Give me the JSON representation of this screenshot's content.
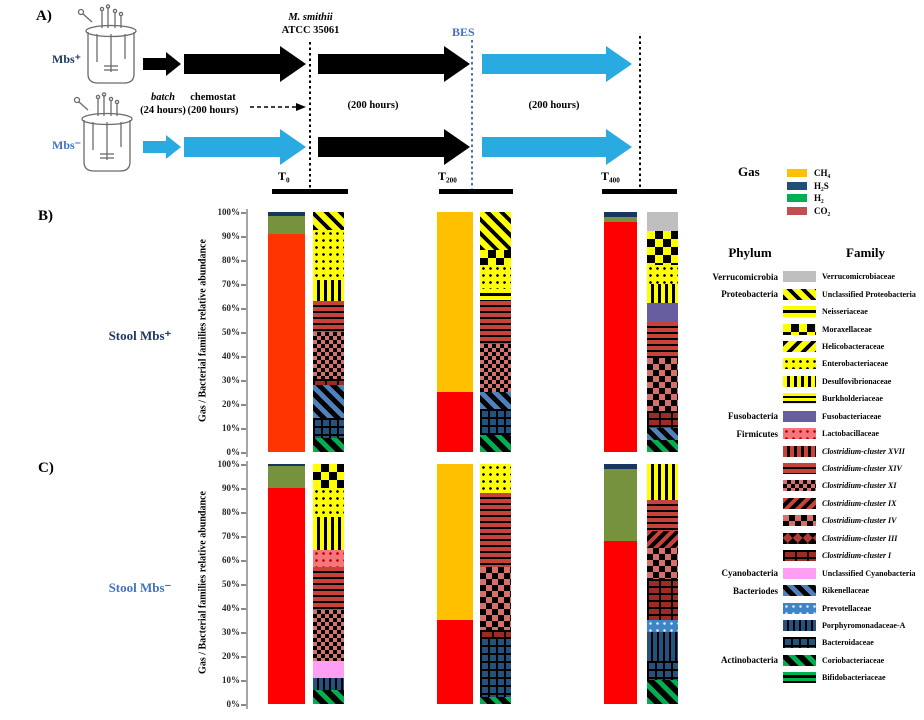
{
  "figure": {
    "panel_a_label": "A)",
    "panel_b_label": "B)",
    "panel_c_label": "C)",
    "reactors": {
      "top_label": "Mbs⁺",
      "bottom_label": "Mbs⁻"
    },
    "timeline": {
      "batch_line1": "batch",
      "batch_line2": "(24 hours)",
      "chemostat_line1": "chemostat",
      "chemostat_line2": "(200 hours)",
      "inoculum_line1": "M. smithii",
      "inoculum_line2": "ATCC 35061",
      "bes_label": "BES",
      "phase2_duration": "(200 hours)",
      "phase3_duration": "(200 hours)",
      "timepoints": [
        "T₀",
        "T₂₀₀",
        "T₄₀₀"
      ]
    }
  },
  "colors": {
    "blue_arrow": "#29ABE2",
    "blue_text": "#4472C4",
    "dark_navy_text": "#1F3864",
    "axis_gray": "#A6A6A6"
  },
  "gas_legend": {
    "title": "Gas",
    "items": [
      {
        "label": "CH₄",
        "color": "#FFC000"
      },
      {
        "label": "H₂S",
        "color": "#1F4E79"
      },
      {
        "label": "H₂",
        "color": "#00B050"
      },
      {
        "label": "CO₂",
        "color": "#C0504D"
      }
    ]
  },
  "family_legend": {
    "phylum_header": "Phylum",
    "family_header": "Family",
    "items": [
      {
        "phylum": "Verrucomicrobia",
        "family": "Verrucomicrobiaceae",
        "pattern": "verrucomicrobiaceae",
        "italic": false
      },
      {
        "phylum": "Proteobacteria",
        "family": "Unclassified Proteobacteria",
        "pattern": "unclassified_proteobacteria",
        "italic": false
      },
      {
        "phylum": "",
        "family": "Neisseriaceae",
        "pattern": "neisseriaceae",
        "italic": false
      },
      {
        "phylum": "",
        "family": "Moraxellaceae",
        "pattern": "moraxellaceae",
        "italic": false
      },
      {
        "phylum": "",
        "family": "Helicobacteraceae",
        "pattern": "helicobacteraceae",
        "italic": false
      },
      {
        "phylum": "",
        "family": "Enterobacteriaceae",
        "pattern": "enterobacteriaceae",
        "italic": false
      },
      {
        "phylum": "",
        "family": "Desulfovibrionaceae",
        "pattern": "desulfovibrionaceae",
        "italic": false
      },
      {
        "phylum": "",
        "family": "Burkholderiaceae",
        "pattern": "burkholderiaceae",
        "italic": false
      },
      {
        "phylum": "Fusobacteria",
        "family": "Fusobacteriaceae",
        "pattern": "fusobacteriaceae",
        "italic": false
      },
      {
        "phylum": "Firmicutes",
        "family": "Lactobacillaceae",
        "pattern": "lactobacillaceae",
        "italic": false
      },
      {
        "phylum": "",
        "family": "Clostridium-cluster XVII",
        "pattern": "clostridium_xvii",
        "italic": true
      },
      {
        "phylum": "",
        "family": "Clostridium-cluster XIV",
        "pattern": "clostridium_xiv",
        "italic": true
      },
      {
        "phylum": "",
        "family": "Clostridium-cluster XI",
        "pattern": "clostridium_xi",
        "italic": true
      },
      {
        "phylum": "",
        "family": "Clostridium-cluster IX",
        "pattern": "clostridium_ix",
        "italic": true
      },
      {
        "phylum": "",
        "family": "Clostridium-cluster IV",
        "pattern": "clostridium_iv",
        "italic": true
      },
      {
        "phylum": "",
        "family": "Clostridium-cluster III",
        "pattern": "clostridium_iii",
        "italic": true
      },
      {
        "phylum": "",
        "family": "Clostridium-cluster I",
        "pattern": "clostridium_i",
        "italic": true
      },
      {
        "phylum": "Cyanobacteria",
        "family": "Unclassified Cyanobacteria",
        "pattern": "cyanobacteria_unclassified",
        "italic": false
      },
      {
        "phylum": "Bacteriodes",
        "family": "Rikenellaceae",
        "pattern": "rikenellaceae",
        "italic": false
      },
      {
        "phylum": "",
        "family": "Prevotellaceae",
        "pattern": "prevotellaceae",
        "italic": false
      },
      {
        "phylum": "",
        "family": "Porphyromonadaceae-A",
        "pattern": "porphyromonadaceae",
        "italic": false
      },
      {
        "phylum": "",
        "family": "Bacteroidaceae",
        "pattern": "bacteroidaceae",
        "italic": false
      },
      {
        "phylum": "Actinobacteria",
        "family": "Coriobacteriaceae",
        "pattern": "coriobacteriaceae",
        "italic": false
      },
      {
        "phylum": "",
        "family": "Bifidobacteriaceae",
        "pattern": "bifidobacteriaceae",
        "italic": false
      }
    ]
  },
  "chart_data": [
    {
      "type": "bar",
      "panel": "B)",
      "row_label": "Stool  Mbs⁺",
      "row_label_color": "#1F3864",
      "ylabel": "Gas / Bacterial families relative abundance",
      "ylim": [
        0,
        100
      ],
      "ytick_labels": [
        "0%",
        "10%",
        "20%",
        "30%",
        "40%",
        "50%",
        "60%",
        "70%",
        "80%",
        "90%",
        "100%"
      ],
      "grid": false,
      "groups": [
        {
          "timepoint": "T₀",
          "gas_stack": [
            {
              "gas": "CO₂",
              "percent": 91,
              "color": "#FF3400"
            },
            {
              "gas": "H₂",
              "percent": 7.5,
              "color": "#76923C"
            },
            {
              "gas": "H₂S",
              "percent": 1.5,
              "color": "#17375E"
            }
          ],
          "family_stack": [
            {
              "family": "Coriobacteriaceae",
              "pattern": "coriobacteriaceae",
              "percent": 6
            },
            {
              "family": "Bacteroidaceae",
              "pattern": "bacteroidaceae",
              "percent": 8
            },
            {
              "family": "Rikenellaceae",
              "pattern": "rikenellaceae",
              "percent": 14
            },
            {
              "family": "Clostridium-cluster I",
              "pattern": "clostridium_i",
              "percent": 2.5
            },
            {
              "family": "Clostridium-cluster XI",
              "pattern": "clostridium_xi",
              "percent": 19.5
            },
            {
              "family": "Clostridium-cluster XIV",
              "pattern": "clostridium_xiv",
              "percent": 13
            },
            {
              "family": "Desulfovibrionaceae",
              "pattern": "desulfovibrionaceae",
              "percent": 8.5
            },
            {
              "family": "Enterobacteriaceae",
              "pattern": "enterobacteriaceae",
              "percent": 21
            },
            {
              "family": "Unclassified Proteobacteria",
              "pattern": "unclassified_proteobacteria",
              "percent": 7.5
            }
          ]
        },
        {
          "timepoint": "T₂₀₀",
          "gas_stack": [
            {
              "gas": "CO₂",
              "percent": 25,
              "color": "#FF0000"
            },
            {
              "gas": "CH₄",
              "percent": 75,
              "color": "#FFC000"
            }
          ],
          "family_stack": [
            {
              "family": "Coriobacteriaceae",
              "pattern": "coriobacteriaceae",
              "percent": 7
            },
            {
              "family": "Bacteroidaceae",
              "pattern": "bacteroidaceae",
              "percent": 11
            },
            {
              "family": "Rikenellaceae",
              "pattern": "rikenellaceae",
              "percent": 7
            },
            {
              "family": "Clostridium-cluster XI",
              "pattern": "clostridium_xi",
              "percent": 20
            },
            {
              "family": "Clostridium-cluster XIV",
              "pattern": "clostridium_xiv",
              "percent": 18
            },
            {
              "family": "Neisseriaceae",
              "pattern": "neisseriaceae",
              "percent": 5
            },
            {
              "family": "Enterobacteriaceae",
              "pattern": "enterobacteriaceae",
              "percent": 10
            },
            {
              "family": "Moraxellaceae",
              "pattern": "moraxellaceae",
              "percent": 6
            },
            {
              "family": "Unclassified Proteobacteria",
              "pattern": "unclassified_proteobacteria",
              "percent": 16
            }
          ]
        },
        {
          "timepoint": "T₄₀₀",
          "gas_stack": [
            {
              "gas": "CO₂",
              "percent": 96,
              "color": "#FF0000"
            },
            {
              "gas": "H₂",
              "percent": 2,
              "color": "#76923C"
            },
            {
              "gas": "H₂S",
              "percent": 2,
              "color": "#17375E"
            }
          ],
          "family_stack": [
            {
              "family": "Coriobacteriaceae",
              "pattern": "coriobacteriaceae",
              "percent": 5
            },
            {
              "family": "Rikenellaceae",
              "pattern": "rikenellaceae",
              "percent": 5
            },
            {
              "family": "Clostridium-cluster I",
              "pattern": "clostridium_i",
              "percent": 7
            },
            {
              "family": "Clostridium-cluster IV",
              "pattern": "clostridium_iv",
              "percent": 22
            },
            {
              "family": "Clostridium-cluster XIV",
              "pattern": "clostridium_xiv",
              "percent": 15
            },
            {
              "family": "Fusobacteriaceae",
              "pattern": "fusobacteriaceae",
              "percent": 8
            },
            {
              "family": "Desulfovibrionaceae",
              "pattern": "desulfovibrionaceae",
              "percent": 8
            },
            {
              "family": "Enterobacteriaceae",
              "pattern": "enterobacteriaceae",
              "percent": 8
            },
            {
              "family": "Moraxellaceae",
              "pattern": "moraxellaceae",
              "percent": 14
            },
            {
              "family": "Verrucomicrobiaceae",
              "pattern": "verrucomicrobiaceae",
              "percent": 8
            }
          ]
        }
      ]
    },
    {
      "type": "bar",
      "panel": "C)",
      "row_label": "Stool  Mbs⁻",
      "row_label_color": "#4472C4",
      "ylabel": "Gas / Bacterial families relative abundance",
      "ylim": [
        0,
        100
      ],
      "ytick_labels": [
        "0%",
        "10%",
        "20%",
        "30%",
        "40%",
        "50%",
        "60%",
        "70%",
        "80%",
        "90%",
        "100%"
      ],
      "grid": false,
      "groups": [
        {
          "timepoint": "T₀",
          "gas_stack": [
            {
              "gas": "CO₂",
              "percent": 90,
              "color": "#FF0000"
            },
            {
              "gas": "H₂",
              "percent": 9,
              "color": "#76923C"
            },
            {
              "gas": "H₂S",
              "percent": 1,
              "color": "#17375E"
            }
          ],
          "family_stack": [
            {
              "family": "Coriobacteriaceae",
              "pattern": "coriobacteriaceae",
              "percent": 6
            },
            {
              "family": "Porphyromonadaceae-A",
              "pattern": "porphyromonadaceae",
              "percent": 5
            },
            {
              "family": "Unclassified Cyanobacteria",
              "pattern": "cyanobacteria_unclassified",
              "percent": 7
            },
            {
              "family": "Clostridium-cluster XI",
              "pattern": "clostridium_xi",
              "percent": 21
            },
            {
              "family": "Clostridium-cluster XIV",
              "pattern": "clostridium_xiv",
              "percent": 18
            },
            {
              "family": "Lactobacillaceae",
              "pattern": "lactobacillaceae",
              "percent": 7
            },
            {
              "family": "Desulfovibrionaceae",
              "pattern": "desulfovibrionaceae",
              "percent": 14
            },
            {
              "family": "Enterobacteriaceae",
              "pattern": "enterobacteriaceae",
              "percent": 12
            },
            {
              "family": "Moraxellaceae",
              "pattern": "moraxellaceae",
              "percent": 10
            }
          ]
        },
        {
          "timepoint": "T₂₀₀",
          "gas_stack": [
            {
              "gas": "CO₂",
              "percent": 35,
              "color": "#FF0000"
            },
            {
              "gas": "CH₄",
              "percent": 65,
              "color": "#FFC000"
            }
          ],
          "family_stack": [
            {
              "family": "Coriobacteriaceae",
              "pattern": "coriobacteriaceae",
              "percent": 3
            },
            {
              "family": "Bacteroidaceae",
              "pattern": "bacteroidaceae",
              "percent": 25
            },
            {
              "family": "Clostridium-cluster I",
              "pattern": "clostridium_i",
              "percent": 3
            },
            {
              "family": "Clostridium-cluster IV",
              "pattern": "clostridium_iv",
              "percent": 26
            },
            {
              "family": "Clostridium-cluster XIV",
              "pattern": "clostridium_xiv",
              "percent": 31
            },
            {
              "family": "Enterobacteriaceae",
              "pattern": "enterobacteriaceae",
              "percent": 12
            }
          ]
        },
        {
          "timepoint": "T₄₀₀",
          "gas_stack": [
            {
              "gas": "CO₂",
              "percent": 68,
              "color": "#FF0000"
            },
            {
              "gas": "H₂",
              "percent": 30,
              "color": "#76923C"
            },
            {
              "gas": "H₂S",
              "percent": 2,
              "color": "#17375E"
            }
          ],
          "family_stack": [
            {
              "family": "Coriobacteriaceae",
              "pattern": "coriobacteriaceae",
              "percent": 10
            },
            {
              "family": "Bacteroidaceae",
              "pattern": "bacteroidaceae",
              "percent": 8
            },
            {
              "family": "Porphyromonadaceae-A",
              "pattern": "porphyromonadaceae",
              "percent": 12
            },
            {
              "family": "Prevotellaceae",
              "pattern": "prevotellaceae",
              "percent": 5
            },
            {
              "family": "Clostridium-cluster I",
              "pattern": "clostridium_i",
              "percent": 17
            },
            {
              "family": "Clostridium-cluster IV",
              "pattern": "clostridium_iv",
              "percent": 13
            },
            {
              "family": "Clostridium-cluster IX",
              "pattern": "clostridium_ix",
              "percent": 7
            },
            {
              "family": "Clostridium-cluster XIV",
              "pattern": "clostridium_xiv",
              "percent": 13
            },
            {
              "family": "Desulfovibrionaceae",
              "pattern": "desulfovibrionaceae",
              "percent": 15
            }
          ]
        }
      ]
    }
  ]
}
